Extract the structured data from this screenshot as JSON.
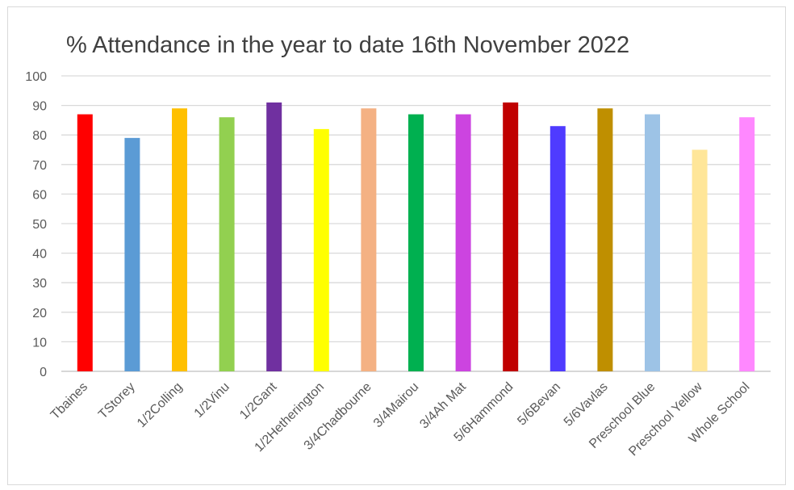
{
  "chart_data": {
    "type": "bar",
    "title": "% Attendance in the year to date 16th November  2022",
    "xlabel": "",
    "ylabel": "",
    "ylim": [
      0,
      100
    ],
    "yticks": [
      "0",
      "10",
      "20",
      "30",
      "40",
      "50",
      "60",
      "70",
      "80",
      "90",
      "100"
    ],
    "grid": true,
    "legend": "none",
    "categories": [
      "Tbaines",
      "TStorey",
      "1/2Colling",
      "1/2Vinu",
      "1/2Gant",
      "1/2Hetherington",
      "3/4Chadbourne",
      "3/4Mairou",
      "3/4Ah Mat",
      "5/6Hammond",
      "5/6Bevan",
      "5/6Vavlas",
      "Preschool Blue",
      "Preschool Yellow",
      "Whole School"
    ],
    "values": [
      87,
      79,
      89,
      86,
      91,
      82,
      89,
      87,
      87,
      91,
      83,
      89,
      87,
      75,
      86
    ],
    "colors": [
      "#ff0000",
      "#5b9bd5",
      "#ffc000",
      "#92d050",
      "#7030a0",
      "#ffff00",
      "#f4b183",
      "#00b050",
      "#cc44e0",
      "#c00000",
      "#4f3bff",
      "#bf8f00",
      "#9dc3e6",
      "#ffe699",
      "#ff88ff"
    ]
  }
}
